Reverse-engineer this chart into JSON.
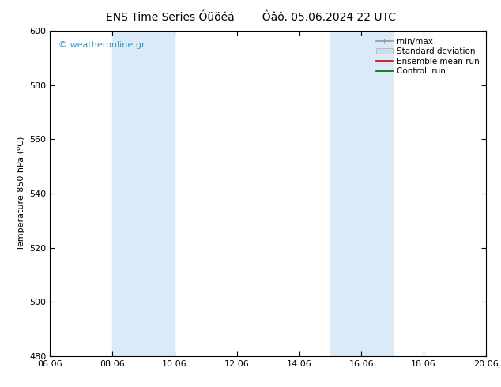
{
  "title": "ENS Time Series Óüöéá        Ôâô. 05.06.2024 22 UTC",
  "ylabel": "Temperature 850 hPa (ºC)",
  "ylim": [
    480,
    600
  ],
  "yticks": [
    480,
    500,
    520,
    540,
    560,
    580,
    600
  ],
  "xtick_positions": [
    6.06,
    8.06,
    10.06,
    12.06,
    14.06,
    16.06,
    18.06,
    20.06
  ],
  "xtick_labels": [
    "06.06",
    "08.06",
    "10.06",
    "12.06",
    "14.06",
    "16.06",
    "18.06",
    "20.06"
  ],
  "shaded_regions": [
    {
      "xmin": 8.06,
      "xmax": 10.06,
      "color": "#daeaf7"
    },
    {
      "xmin": 15.06,
      "xmax": 17.06,
      "color": "#daeaf7"
    }
  ],
  "watermark": "© weatheronline.gr",
  "watermark_color": "#3399cc",
  "legend_entries": [
    {
      "label": "min/max",
      "color": "#999999",
      "lw": 1.2
    },
    {
      "label": "Standard deviation",
      "color": "#ccddee",
      "lw": 6
    },
    {
      "label": "Ensemble mean run",
      "color": "#cc0000",
      "lw": 1.2
    },
    {
      "label": "Controll run",
      "color": "#006600",
      "lw": 1.2
    }
  ],
  "background_color": "#ffffff",
  "plot_bg_color": "#ffffff",
  "title_fontsize": 10,
  "axis_label_fontsize": 8,
  "tick_fontsize": 8,
  "legend_fontsize": 7.5
}
